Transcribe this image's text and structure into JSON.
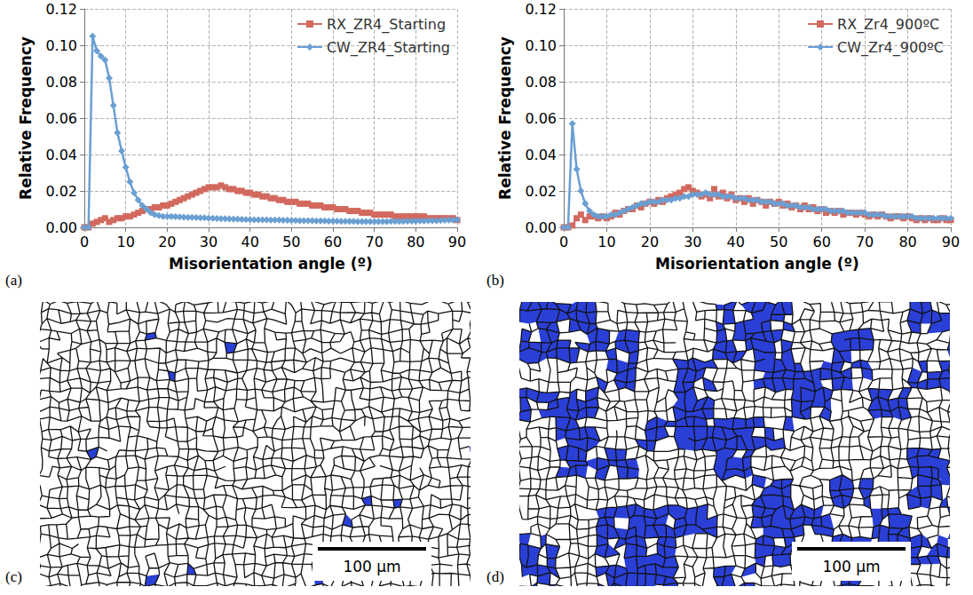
{
  "chart_data": [
    {
      "type": "line",
      "panel": "(a)",
      "xlabel": "Misorientation angle (º)",
      "ylabel": "Relative Frequency",
      "xlim": [
        0,
        90
      ],
      "xticks": [
        0,
        10,
        20,
        30,
        40,
        50,
        60,
        70,
        80,
        90
      ],
      "ylim": [
        0,
        0.12
      ],
      "yticks": [
        {
          "value": 0,
          "label": "0.00"
        },
        {
          "value": 0.02,
          "label": "0.02"
        },
        {
          "value": 0.04,
          "label": "0.04"
        },
        {
          "value": 0.06,
          "label": "0.06"
        },
        {
          "value": 0.08,
          "label": "0.08"
        },
        {
          "value": 0.1,
          "label": "0.10"
        },
        {
          "value": 0.12,
          "label": "0.12"
        }
      ],
      "grid": true,
      "legend": "upper right",
      "x": [
        0,
        1,
        2,
        3,
        4,
        5,
        6,
        7,
        8,
        9,
        10,
        11,
        12,
        13,
        14,
        15,
        16,
        17,
        18,
        19,
        20,
        21,
        22,
        23,
        24,
        25,
        26,
        27,
        28,
        29,
        30,
        31,
        32,
        33,
        34,
        35,
        36,
        37,
        38,
        39,
        40,
        41,
        42,
        43,
        44,
        45,
        46,
        47,
        48,
        49,
        50,
        51,
        52,
        53,
        54,
        55,
        56,
        57,
        58,
        59,
        60,
        61,
        62,
        63,
        64,
        65,
        66,
        67,
        68,
        69,
        70,
        71,
        72,
        73,
        74,
        75,
        76,
        77,
        78,
        79,
        80,
        81,
        82,
        83,
        84,
        85,
        86,
        87,
        88,
        89,
        90
      ],
      "series": [
        {
          "name": "RX_ZR4_Starting",
          "color": "#d2695f",
          "marker": "square",
          "line_style": "solid",
          "values": [
            0,
            0,
            0.002,
            0.003,
            0.004,
            0.005,
            0.003,
            0.004,
            0.005,
            0.005,
            0.006,
            0.006,
            0.007,
            0.008,
            0.009,
            0.01,
            0.01,
            0.011,
            0.011,
            0.012,
            0.012,
            0.013,
            0.014,
            0.015,
            0.016,
            0.017,
            0.018,
            0.019,
            0.02,
            0.021,
            0.022,
            0.022,
            0.022,
            0.023,
            0.022,
            0.021,
            0.021,
            0.02,
            0.02,
            0.019,
            0.019,
            0.018,
            0.018,
            0.017,
            0.017,
            0.016,
            0.016,
            0.015,
            0.015,
            0.014,
            0.014,
            0.014,
            0.013,
            0.013,
            0.013,
            0.012,
            0.012,
            0.012,
            0.011,
            0.011,
            0.011,
            0.01,
            0.01,
            0.01,
            0.009,
            0.009,
            0.009,
            0.008,
            0.008,
            0.008,
            0.007,
            0.007,
            0.007,
            0.007,
            0.007,
            0.006,
            0.006,
            0.006,
            0.006,
            0.006,
            0.006,
            0.006,
            0.006,
            0.005,
            0.005,
            0.005,
            0.005,
            0.005,
            0.005,
            0.005,
            0.004
          ]
        },
        {
          "name": "CW_ZR4_Starting",
          "color": "#6a9fd2",
          "marker": "diamond",
          "line_style": "solid",
          "values": [
            0,
            0,
            0.105,
            0.097,
            0.094,
            0.092,
            0.082,
            0.067,
            0.052,
            0.042,
            0.033,
            0.025,
            0.019,
            0.015,
            0.012,
            0.01,
            0.008,
            0.007,
            0.0065,
            0.006,
            0.006,
            0.006,
            0.0058,
            0.0057,
            0.0056,
            0.0055,
            0.0055,
            0.0054,
            0.0053,
            0.0052,
            0.005,
            0.005,
            0.0049,
            0.0048,
            0.0047,
            0.0046,
            0.0045,
            0.0045,
            0.0044,
            0.0043,
            0.0043,
            0.0042,
            0.0042,
            0.0041,
            0.0041,
            0.004,
            0.004,
            0.004,
            0.0039,
            0.0039,
            0.0038,
            0.0038,
            0.0037,
            0.0037,
            0.0036,
            0.0036,
            0.0035,
            0.0035,
            0.0035,
            0.0034,
            0.0034,
            0.0034,
            0.0033,
            0.0033,
            0.0033,
            0.0033,
            0.0032,
            0.0032,
            0.0032,
            0.0032,
            0.0032,
            0.0032,
            0.0032,
            0.0032,
            0.0033,
            0.0033,
            0.0033,
            0.0033,
            0.0034,
            0.0034,
            0.0034,
            0.0035,
            0.0035,
            0.0036,
            0.0036,
            0.0037,
            0.0038,
            0.0039,
            0.004,
            0.004,
            0.0041
          ]
        }
      ]
    },
    {
      "type": "line",
      "panel": "(b)",
      "xlabel": "Misorientation angle (º)",
      "ylabel": "Relative Frequency",
      "xlim": [
        0,
        90
      ],
      "xticks": [
        0,
        10,
        20,
        30,
        40,
        50,
        60,
        70,
        80,
        90
      ],
      "ylim": [
        0,
        0.12
      ],
      "yticks": [
        {
          "value": 0,
          "label": "0.00"
        },
        {
          "value": 0.02,
          "label": "0.02"
        },
        {
          "value": 0.04,
          "label": "0.04"
        },
        {
          "value": 0.06,
          "label": "0.06"
        },
        {
          "value": 0.08,
          "label": "0.08"
        },
        {
          "value": 0.1,
          "label": "0.10"
        },
        {
          "value": 0.12,
          "label": "0.12"
        }
      ],
      "grid": true,
      "legend": "upper right",
      "x": [
        0,
        1,
        2,
        3,
        4,
        5,
        6,
        7,
        8,
        9,
        10,
        11,
        12,
        13,
        14,
        15,
        16,
        17,
        18,
        19,
        20,
        21,
        22,
        23,
        24,
        25,
        26,
        27,
        28,
        29,
        30,
        31,
        32,
        33,
        34,
        35,
        36,
        37,
        38,
        39,
        40,
        41,
        42,
        43,
        44,
        45,
        46,
        47,
        48,
        49,
        50,
        51,
        52,
        53,
        54,
        55,
        56,
        57,
        58,
        59,
        60,
        61,
        62,
        63,
        64,
        65,
        66,
        67,
        68,
        69,
        70,
        71,
        72,
        73,
        74,
        75,
        76,
        77,
        78,
        79,
        80,
        81,
        82,
        83,
        84,
        85,
        86,
        87,
        88,
        89,
        90
      ],
      "series": [
        {
          "name": "RX_Zr4_900ºC",
          "color": "#d2695f",
          "marker": "square",
          "line_style": "solid",
          "values": [
            0,
            0,
            0.001,
            0.005,
            0.007,
            0.004,
            0.006,
            0.006,
            0.005,
            0.006,
            0.005,
            0.006,
            0.008,
            0.007,
            0.009,
            0.01,
            0.01,
            0.012,
            0.011,
            0.013,
            0.014,
            0.013,
            0.015,
            0.014,
            0.016,
            0.017,
            0.018,
            0.019,
            0.021,
            0.022,
            0.02,
            0.019,
            0.017,
            0.018,
            0.016,
            0.021,
            0.017,
            0.019,
            0.016,
            0.018,
            0.015,
            0.016,
            0.014,
            0.016,
            0.013,
            0.015,
            0.014,
            0.012,
            0.014,
            0.013,
            0.014,
            0.012,
            0.013,
            0.011,
            0.012,
            0.01,
            0.012,
            0.01,
            0.011,
            0.009,
            0.01,
            0.008,
            0.009,
            0.008,
            0.009,
            0.007,
            0.008,
            0.008,
            0.007,
            0.008,
            0.007,
            0.006,
            0.007,
            0.006,
            0.007,
            0.006,
            0.005,
            0.006,
            0.006,
            0.005,
            0.006,
            0.005,
            0.004,
            0.005,
            0.004,
            0.005,
            0.004,
            0.004,
            0.005,
            0.004,
            0.004
          ]
        },
        {
          "name": "CW_Zr4_900ºC",
          "color": "#6a9fd2",
          "marker": "diamond",
          "line_style": "solid",
          "values": [
            0,
            0,
            0.057,
            0.032,
            0.02,
            0.013,
            0.009,
            0.007,
            0.006,
            0.006,
            0.006,
            0.007,
            0.007,
            0.008,
            0.009,
            0.01,
            0.011,
            0.012,
            0.013,
            0.013,
            0.014,
            0.014,
            0.014,
            0.015,
            0.015,
            0.015,
            0.016,
            0.016,
            0.017,
            0.017,
            0.018,
            0.018,
            0.018,
            0.019,
            0.018,
            0.018,
            0.018,
            0.017,
            0.017,
            0.017,
            0.016,
            0.016,
            0.016,
            0.015,
            0.015,
            0.015,
            0.014,
            0.014,
            0.014,
            0.013,
            0.013,
            0.013,
            0.012,
            0.012,
            0.012,
            0.011,
            0.011,
            0.011,
            0.01,
            0.01,
            0.01,
            0.01,
            0.009,
            0.009,
            0.009,
            0.009,
            0.008,
            0.008,
            0.008,
            0.008,
            0.008,
            0.007,
            0.007,
            0.007,
            0.007,
            0.006,
            0.006,
            0.006,
            0.006,
            0.006,
            0.006,
            0.006,
            0.005,
            0.005,
            0.005,
            0.005,
            0.005,
            0.005,
            0.005,
            0.005,
            0.005
          ]
        }
      ]
    }
  ],
  "images": [
    {
      "panel": "(c)",
      "scale_bar": "100 μm"
    },
    {
      "panel": "(d)",
      "scale_bar": "100 μm"
    }
  ]
}
